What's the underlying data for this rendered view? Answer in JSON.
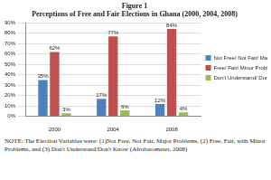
{
  "chart_data": {
    "type": "bar",
    "title": [
      "Figure 1",
      "Perceptions of Free and Fair Elections in Ghana (2000, 2004, 2008)"
    ],
    "categories": [
      "2000",
      "2004",
      "2008"
    ],
    "series": [
      {
        "name": "Not Free/ Not Fair/ Major Problems",
        "color": "#4f81bd",
        "values": [
          35,
          17,
          12
        ],
        "value_labels": [
          "35%",
          "17%",
          "12%"
        ]
      },
      {
        "name": "Free/ Fair/ Minor Problems",
        "color": "#c0504d",
        "values": [
          62,
          77,
          84
        ],
        "value_labels": [
          "62%",
          "77%",
          "84%"
        ]
      },
      {
        "name": "Don't Understand/ Don't Know",
        "color": "#9bbb59",
        "values": [
          3,
          6,
          4
        ],
        "value_labels": [
          "3%",
          "6%",
          "4%"
        ]
      }
    ],
    "ylim": [
      0,
      90
    ],
    "yticks": [
      {
        "value": 0,
        "label": "0%"
      },
      {
        "value": 10,
        "label": "10%"
      },
      {
        "value": 20,
        "label": "20%"
      },
      {
        "value": 30,
        "label": "30%"
      },
      {
        "value": 40,
        "label": "40%"
      },
      {
        "value": 50,
        "label": "50%"
      },
      {
        "value": 60,
        "label": "60%"
      },
      {
        "value": 70,
        "label": "70%"
      },
      {
        "value": 80,
        "label": "80%"
      },
      {
        "value": 90,
        "label": "90%"
      }
    ],
    "grid": true,
    "legend": "right",
    "data_labels": true,
    "annotations": [
      "NOTE: The Election Variables were: (1)Not Free, Not Fair, Major Problems, (2) Free, Fair, with Minor Problems, and (3) Don't Understand/Don't Know (Afrobarometer, 2008)"
    ]
  }
}
